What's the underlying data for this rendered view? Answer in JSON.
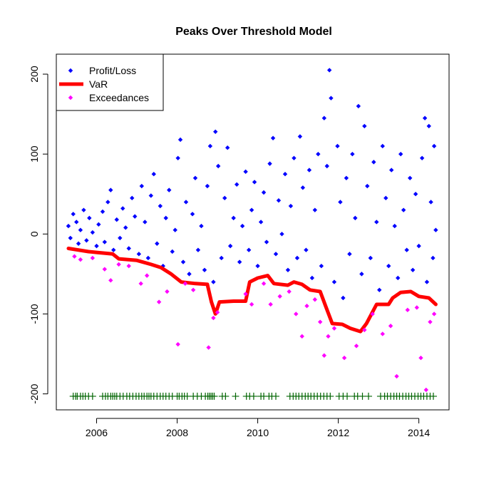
{
  "chart_data": {
    "type": "scatter",
    "title": "Peaks Over Threshold Model",
    "xlabel": "",
    "ylabel": "",
    "xlim": [
      2005.0,
      2014.75
    ],
    "ylim": [
      -220,
      225
    ],
    "x_ticks": [
      2006,
      2008,
      2010,
      2012,
      2014
    ],
    "x_tick_labels": [
      "2006",
      "2008",
      "2010",
      "2012",
      "2014"
    ],
    "y_ticks": [
      -200,
      -100,
      0,
      100,
      200
    ],
    "y_tick_labels": [
      "-200",
      "-100",
      "0",
      "100",
      "200"
    ],
    "grid": false,
    "legend_position": "top-left",
    "legend": [
      {
        "label": "Profit/Loss",
        "color": "#0000ff",
        "kind": "point"
      },
      {
        "label": "VaR",
        "color": "#ff0000",
        "kind": "line"
      },
      {
        "label": "Exceedances",
        "color": "#ff00ff",
        "kind": "point"
      }
    ],
    "series": [
      {
        "name": "Profit/Loss",
        "color": "#0000ff",
        "kind": "points",
        "points": [
          [
            2005.3,
            10
          ],
          [
            2005.35,
            -5
          ],
          [
            2005.42,
            25
          ],
          [
            2005.5,
            15
          ],
          [
            2005.55,
            -12
          ],
          [
            2005.6,
            5
          ],
          [
            2005.68,
            30
          ],
          [
            2005.75,
            -8
          ],
          [
            2005.82,
            20
          ],
          [
            2005.9,
            2
          ],
          [
            2006.0,
            -15
          ],
          [
            2006.05,
            12
          ],
          [
            2006.15,
            28
          ],
          [
            2006.2,
            -10
          ],
          [
            2006.28,
            40
          ],
          [
            2006.35,
            55
          ],
          [
            2006.42,
            -20
          ],
          [
            2006.5,
            18
          ],
          [
            2006.58,
            -5
          ],
          [
            2006.65,
            32
          ],
          [
            2006.72,
            8
          ],
          [
            2006.8,
            -18
          ],
          [
            2006.88,
            45
          ],
          [
            2006.95,
            22
          ],
          [
            2007.05,
            -25
          ],
          [
            2007.12,
            60
          ],
          [
            2007.2,
            15
          ],
          [
            2007.28,
            -30
          ],
          [
            2007.35,
            48
          ],
          [
            2007.42,
            75
          ],
          [
            2007.5,
            -12
          ],
          [
            2007.58,
            35
          ],
          [
            2007.65,
            -40
          ],
          [
            2007.72,
            20
          ],
          [
            2007.8,
            55
          ],
          [
            2007.88,
            -22
          ],
          [
            2007.95,
            5
          ],
          [
            2008.02,
            95
          ],
          [
            2008.08,
            118
          ],
          [
            2008.15,
            -35
          ],
          [
            2008.22,
            40
          ],
          [
            2008.3,
            -50
          ],
          [
            2008.38,
            25
          ],
          [
            2008.45,
            70
          ],
          [
            2008.52,
            -20
          ],
          [
            2008.6,
            10
          ],
          [
            2008.68,
            -45
          ],
          [
            2008.75,
            60
          ],
          [
            2008.82,
            110
          ],
          [
            2008.9,
            -60
          ],
          [
            2008.95,
            128
          ],
          [
            2009.02,
            85
          ],
          [
            2009.1,
            -30
          ],
          [
            2009.18,
            45
          ],
          [
            2009.25,
            108
          ],
          [
            2009.32,
            -15
          ],
          [
            2009.4,
            20
          ],
          [
            2009.48,
            62
          ],
          [
            2009.55,
            -35
          ],
          [
            2009.62,
            10
          ],
          [
            2009.7,
            78
          ],
          [
            2009.78,
            -20
          ],
          [
            2009.85,
            30
          ],
          [
            2009.92,
            65
          ],
          [
            2010.0,
            -40
          ],
          [
            2010.08,
            15
          ],
          [
            2010.15,
            52
          ],
          [
            2010.22,
            -10
          ],
          [
            2010.3,
            88
          ],
          [
            2010.38,
            120
          ],
          [
            2010.45,
            -25
          ],
          [
            2010.52,
            42
          ],
          [
            2010.6,
            0
          ],
          [
            2010.68,
            75
          ],
          [
            2010.75,
            -45
          ],
          [
            2010.82,
            35
          ],
          [
            2010.9,
            95
          ],
          [
            2010.98,
            -30
          ],
          [
            2011.05,
            122
          ],
          [
            2011.12,
            58
          ],
          [
            2011.2,
            -20
          ],
          [
            2011.28,
            80
          ],
          [
            2011.35,
            -55
          ],
          [
            2011.42,
            30
          ],
          [
            2011.5,
            100
          ],
          [
            2011.58,
            -40
          ],
          [
            2011.65,
            145
          ],
          [
            2011.72,
            85
          ],
          [
            2011.78,
            205
          ],
          [
            2011.82,
            170
          ],
          [
            2011.9,
            -60
          ],
          [
            2011.98,
            110
          ],
          [
            2012.05,
            40
          ],
          [
            2012.12,
            -80
          ],
          [
            2012.2,
            70
          ],
          [
            2012.28,
            -25
          ],
          [
            2012.35,
            100
          ],
          [
            2012.42,
            20
          ],
          [
            2012.5,
            160
          ],
          [
            2012.58,
            -50
          ],
          [
            2012.65,
            135
          ],
          [
            2012.72,
            60
          ],
          [
            2012.8,
            -30
          ],
          [
            2012.88,
            90
          ],
          [
            2012.95,
            15
          ],
          [
            2013.02,
            -70
          ],
          [
            2013.1,
            110
          ],
          [
            2013.18,
            45
          ],
          [
            2013.25,
            -40
          ],
          [
            2013.32,
            80
          ],
          [
            2013.4,
            10
          ],
          [
            2013.48,
            -55
          ],
          [
            2013.55,
            100
          ],
          [
            2013.62,
            30
          ],
          [
            2013.7,
            -20
          ],
          [
            2013.78,
            70
          ],
          [
            2013.85,
            -45
          ],
          [
            2013.92,
            50
          ],
          [
            2014.0,
            -15
          ],
          [
            2014.08,
            95
          ],
          [
            2014.15,
            145
          ],
          [
            2014.2,
            -60
          ],
          [
            2014.25,
            135
          ],
          [
            2014.3,
            40
          ],
          [
            2014.35,
            -30
          ],
          [
            2014.38,
            110
          ],
          [
            2014.42,
            5
          ]
        ]
      },
      {
        "name": "VaR",
        "color": "#ff0000",
        "kind": "line",
        "points": [
          [
            2005.3,
            -18
          ],
          [
            2005.8,
            -22
          ],
          [
            2006.0,
            -23
          ],
          [
            2006.4,
            -25
          ],
          [
            2006.55,
            -31
          ],
          [
            2007.0,
            -33
          ],
          [
            2007.35,
            -38
          ],
          [
            2007.6,
            -42
          ],
          [
            2007.85,
            -50
          ],
          [
            2008.1,
            -60
          ],
          [
            2008.45,
            -62
          ],
          [
            2008.75,
            -63
          ],
          [
            2008.85,
            -85
          ],
          [
            2008.95,
            -100
          ],
          [
            2009.05,
            -85
          ],
          [
            2009.4,
            -84
          ],
          [
            2009.7,
            -84
          ],
          [
            2009.8,
            -60
          ],
          [
            2010.0,
            -55
          ],
          [
            2010.25,
            -52
          ],
          [
            2010.4,
            -62
          ],
          [
            2010.75,
            -64
          ],
          [
            2010.9,
            -60
          ],
          [
            2011.1,
            -63
          ],
          [
            2011.3,
            -70
          ],
          [
            2011.55,
            -72
          ],
          [
            2011.7,
            -92
          ],
          [
            2011.85,
            -112
          ],
          [
            2012.1,
            -113
          ],
          [
            2012.3,
            -118
          ],
          [
            2012.55,
            -122
          ],
          [
            2012.7,
            -112
          ],
          [
            2012.95,
            -88
          ],
          [
            2013.25,
            -88
          ],
          [
            2013.35,
            -80
          ],
          [
            2013.55,
            -73
          ],
          [
            2013.8,
            -72
          ],
          [
            2014.0,
            -78
          ],
          [
            2014.25,
            -80
          ],
          [
            2014.42,
            -88
          ]
        ]
      },
      {
        "name": "Exceedances",
        "color": "#ff00ff",
        "kind": "points",
        "points": [
          [
            2005.45,
            -28
          ],
          [
            2005.6,
            -32
          ],
          [
            2005.9,
            -30
          ],
          [
            2006.2,
            -44
          ],
          [
            2006.35,
            -58
          ],
          [
            2006.55,
            -38
          ],
          [
            2006.8,
            -40
          ],
          [
            2007.1,
            -62
          ],
          [
            2007.25,
            -52
          ],
          [
            2007.55,
            -85
          ],
          [
            2007.75,
            -72
          ],
          [
            2008.02,
            -138
          ],
          [
            2008.2,
            -62
          ],
          [
            2008.4,
            -70
          ],
          [
            2008.78,
            -142
          ],
          [
            2008.9,
            -105
          ],
          [
            2009.0,
            -98
          ],
          [
            2009.7,
            -75
          ],
          [
            2009.85,
            -88
          ],
          [
            2010.15,
            -62
          ],
          [
            2010.32,
            -88
          ],
          [
            2010.55,
            -78
          ],
          [
            2010.78,
            -72
          ],
          [
            2010.95,
            -100
          ],
          [
            2011.1,
            -128
          ],
          [
            2011.22,
            -90
          ],
          [
            2011.42,
            -82
          ],
          [
            2011.55,
            -110
          ],
          [
            2011.65,
            -152
          ],
          [
            2011.75,
            -128
          ],
          [
            2011.9,
            -118
          ],
          [
            2012.15,
            -155
          ],
          [
            2012.45,
            -140
          ],
          [
            2012.65,
            -120
          ],
          [
            2012.85,
            -100
          ],
          [
            2013.1,
            -125
          ],
          [
            2013.3,
            -115
          ],
          [
            2013.45,
            -178
          ],
          [
            2013.72,
            -95
          ],
          [
            2013.95,
            -92
          ],
          [
            2014.05,
            -155
          ],
          [
            2014.18,
            -195
          ],
          [
            2014.28,
            -110
          ],
          [
            2014.38,
            -100
          ]
        ]
      },
      {
        "name": "",
        "color": "#006400",
        "kind": "rug",
        "y": -203,
        "x": [
          2005.42,
          2005.48,
          2005.52,
          2005.6,
          2005.66,
          2005.72,
          2005.8,
          2005.9,
          2006.15,
          2006.22,
          2006.28,
          2006.35,
          2006.4,
          2006.45,
          2006.5,
          2006.58,
          2006.66,
          2006.75,
          2006.82,
          2006.9,
          2006.98,
          2007.05,
          2007.12,
          2007.18,
          2007.25,
          2007.3,
          2007.35,
          2007.42,
          2007.5,
          2007.58,
          2007.65,
          2007.72,
          2007.8,
          2007.88,
          2008.0,
          2008.05,
          2008.12,
          2008.18,
          2008.25,
          2008.4,
          2008.5,
          2008.6,
          2008.7,
          2008.76,
          2008.8,
          2008.84,
          2008.88,
          2008.92,
          2009.12,
          2009.2,
          2009.45,
          2009.72,
          2009.8,
          2009.9,
          2010.08,
          2010.15,
          2010.28,
          2010.35,
          2010.45,
          2010.8,
          2010.88,
          2010.95,
          2011.02,
          2011.1,
          2011.18,
          2011.25,
          2011.32,
          2011.4,
          2011.48,
          2011.56,
          2011.64,
          2011.72,
          2011.8,
          2012.02,
          2012.12,
          2012.22,
          2012.4,
          2012.48,
          2012.6,
          2012.75,
          2013.05,
          2013.15,
          2013.22,
          2013.3,
          2013.38,
          2013.45,
          2013.52,
          2013.6,
          2013.68,
          2013.75,
          2013.82,
          2013.9,
          2013.98,
          2014.05,
          2014.12,
          2014.2,
          2014.28,
          2014.36
        ]
      }
    ]
  }
}
